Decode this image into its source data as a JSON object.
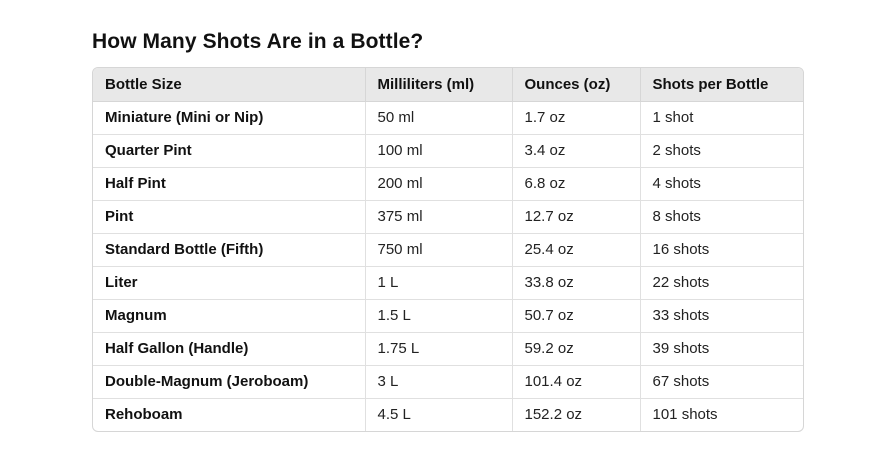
{
  "page": {
    "title": "How Many Shots Are in a Bottle?"
  },
  "table": {
    "headers": [
      "Bottle Size",
      "Milliliters (ml)",
      "Ounces (oz)",
      "Shots per Bottle"
    ],
    "rows": [
      [
        "Miniature (Mini or Nip)",
        "50 ml",
        "1.7 oz",
        "1 shot"
      ],
      [
        "Quarter Pint",
        "100 ml",
        "3.4 oz",
        "2 shots"
      ],
      [
        "Half Pint",
        "200 ml",
        "6.8 oz",
        "4 shots"
      ],
      [
        "Pint",
        "375 ml",
        "12.7 oz",
        "8 shots"
      ],
      [
        "Standard Bottle (Fifth)",
        "750 ml",
        "25.4 oz",
        "16 shots"
      ],
      [
        "Liter",
        "1 L",
        "33.8 oz",
        "22 shots"
      ],
      [
        "Magnum",
        "1.5 L",
        "50.7 oz",
        "33 shots"
      ],
      [
        "Half Gallon (Handle)",
        "1.75 L",
        "59.2 oz",
        "39 shots"
      ],
      [
        "Double-Magnum (Jeroboam)",
        "3 L",
        "101.4 oz",
        "67 shots"
      ],
      [
        "Rehoboam",
        "4.5 L",
        "152.2 oz",
        "101 shots"
      ]
    ]
  },
  "colors": {
    "header_bg": "#e8e8e8",
    "border": "#d6d6d6",
    "text": "#111111"
  }
}
